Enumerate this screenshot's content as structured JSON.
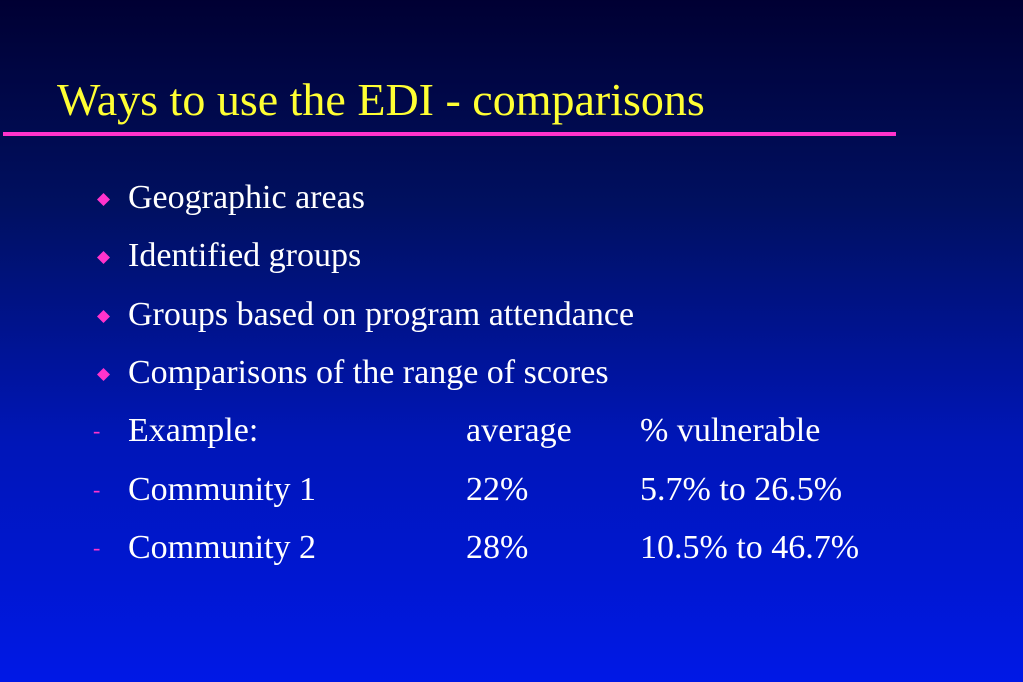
{
  "slide": {
    "title": "Ways to use the EDI - comparisons",
    "bullets": [
      "Geographic areas",
      "Identified groups",
      "Groups based on program attendance",
      "Comparisons of the range of scores"
    ],
    "table": {
      "header": [
        "Example:",
        "average",
        "% vulnerable"
      ],
      "rows": [
        [
          "Community 1",
          "22%",
          "5.7% to 26.5%"
        ],
        [
          "Community 2",
          "28%",
          "10.5% to 46.7%"
        ]
      ],
      "marker": "-"
    }
  },
  "colors": {
    "title": "#ffff33",
    "accent": "#ff33cc",
    "text": "#ffffff",
    "background_top": "#000033",
    "background_bottom": "#0018e6"
  },
  "icons": {
    "bullet": "diamond-icon",
    "sub_bullet": "dash"
  }
}
